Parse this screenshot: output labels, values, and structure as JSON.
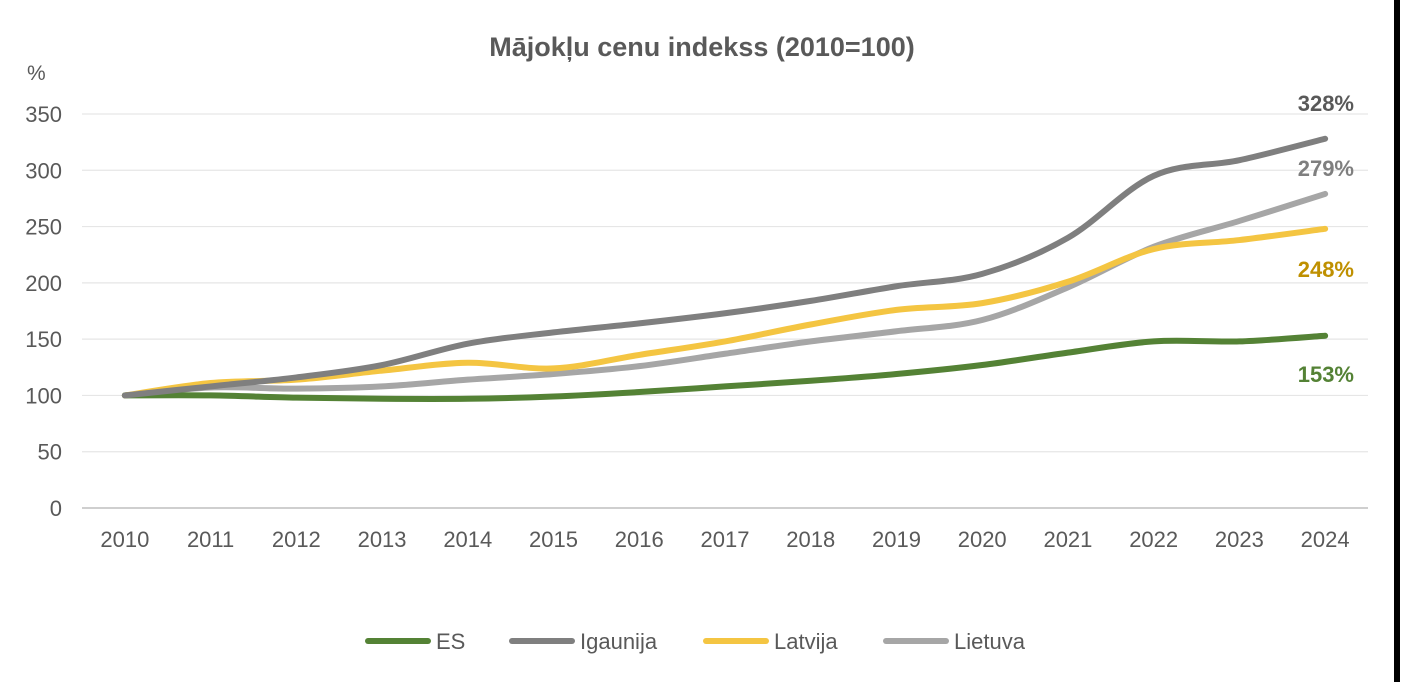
{
  "chart_data": {
    "type": "line",
    "title": "Mājokļu cenu indekss (2010=100)",
    "ylabel": "%",
    "xlabel": "",
    "ylim": [
      0,
      350
    ],
    "yticks": [
      "0",
      "50",
      "100",
      "150",
      "200",
      "250",
      "300",
      "350"
    ],
    "categories": [
      "2010",
      "2011",
      "2012",
      "2013",
      "2014",
      "2015",
      "2016",
      "2017",
      "2018",
      "2019",
      "2020",
      "2021",
      "2022",
      "2023",
      "2024"
    ],
    "grid": "horizontal",
    "legend_position": "bottom",
    "series": [
      {
        "name": "ES",
        "color": "#548235",
        "values": [
          100,
          100,
          98,
          97,
          97,
          99,
          103,
          108,
          113,
          119,
          127,
          138,
          148,
          148,
          153
        ],
        "end_label": "153%"
      },
      {
        "name": "Igaunija",
        "color": "#7f7f7f",
        "values": [
          100,
          108,
          116,
          127,
          146,
          156,
          164,
          173,
          184,
          197,
          208,
          240,
          295,
          309,
          328
        ],
        "end_label": "328%"
      },
      {
        "name": "Latvija",
        "color": "#f4c542",
        "values": [
          100,
          111,
          114,
          122,
          129,
          124,
          136,
          148,
          163,
          176,
          182,
          201,
          230,
          238,
          248
        ],
        "end_label": "248%"
      },
      {
        "name": "Lietuva",
        "color": "#a6a6a6",
        "values": [
          100,
          107,
          106,
          108,
          114,
          119,
          126,
          137,
          148,
          157,
          167,
          196,
          232,
          255,
          279
        ],
        "end_label": "279%"
      }
    ],
    "end_label_colors": {
      "ES": "#548235",
      "Igaunija": "#595959",
      "Latvija": "#bf9000",
      "Lietuva": "#7f7f7f"
    }
  }
}
